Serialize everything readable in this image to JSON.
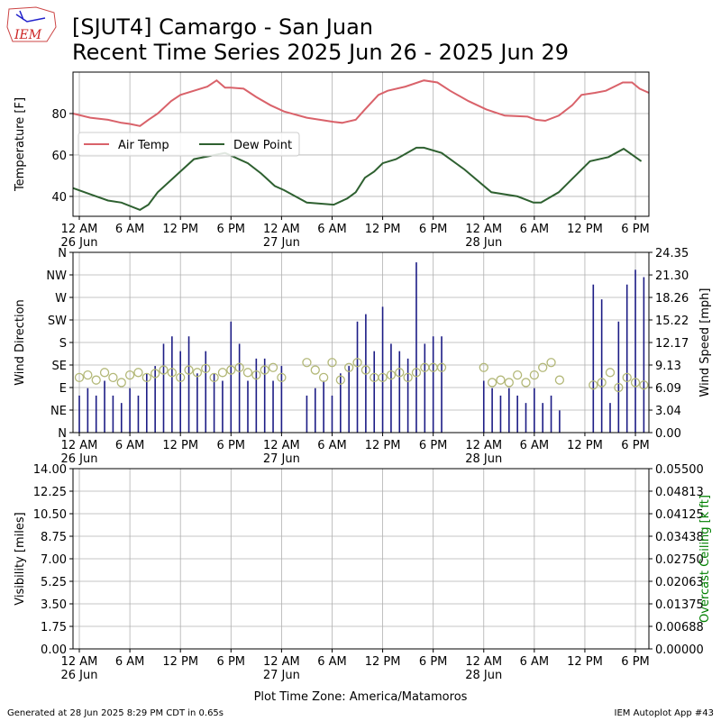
{
  "title": [
    "[SJUT4] Camargo - San Juan",
    "Recent Time Series 2025 Jun 26 - 2025 Jun 29"
  ],
  "logo": "IEM",
  "xlabel": "Plot Time Zone: America/Matamoros",
  "footer_left": "Generated at 28 Jun 2025 8:29 PM CDT in 0.65s",
  "footer_right": "IEM Autoplot App #43",
  "chart_data": [
    {
      "type": "line",
      "ylabel": "Temperature [F]",
      "grid": true,
      "legend": "center left",
      "xlim": [
        -0.75,
        67.6
      ],
      "ylim": [
        30.4,
        100
      ],
      "yticks": [
        40,
        60,
        80
      ],
      "xticks": [
        {
          "value": 0,
          "label": "12 AM\n26 Jun"
        },
        {
          "value": 6,
          "label": "6 AM"
        },
        {
          "value": 12,
          "label": "12 PM"
        },
        {
          "value": 18,
          "label": "6 PM"
        },
        {
          "value": 24,
          "label": "12 AM\n27 Jun"
        },
        {
          "value": 30,
          "label": "6 AM"
        },
        {
          "value": 36,
          "label": "12 PM"
        },
        {
          "value": 42,
          "label": "6 PM"
        },
        {
          "value": 48,
          "label": "12 AM\n28 Jun"
        },
        {
          "value": 54,
          "label": "6 AM"
        },
        {
          "value": 60,
          "label": "12 PM"
        },
        {
          "value": 66,
          "label": "6 PM"
        }
      ],
      "series": [
        {
          "name": "Air Temp",
          "color": "#d9626a",
          "x": [
            -0.75,
            1.3,
            3.4,
            5,
            6,
            7.2,
            8.2,
            9.3,
            10.9,
            12,
            13.6,
            15.2,
            16.3,
            17.3,
            18,
            19.5,
            21,
            22.7,
            24.3,
            27,
            30.2,
            31.2,
            32.8,
            33.9,
            35.5,
            36.6,
            38.7,
            40.9,
            42.5,
            44,
            46.2,
            48.3,
            50.5,
            53.2,
            54.2,
            55.3,
            56.9,
            58.5,
            59.6,
            61.2,
            62.5,
            64.5,
            65.6,
            66.5,
            67.6
          ],
          "values": [
            80,
            78,
            77,
            75.5,
            75,
            74,
            77,
            80,
            86,
            89,
            91,
            93,
            96,
            92.5,
            92.5,
            92,
            88,
            84,
            81,
            78,
            76,
            75.5,
            77,
            82,
            89,
            91,
            93,
            96,
            95,
            91,
            86,
            82,
            79,
            78.5,
            77,
            76.5,
            79,
            84,
            89,
            90,
            91,
            95,
            95,
            92,
            90
          ]
        },
        {
          "name": "Dew Point",
          "color": "#2e6030",
          "x": [
            -0.75,
            1.3,
            3.4,
            5,
            7.2,
            8.2,
            9.3,
            12,
            13.6,
            17.3,
            20,
            21.6,
            23.2,
            24.3,
            27,
            30.2,
            31.8,
            32.8,
            33.9,
            35,
            36,
            37.6,
            40,
            40.9,
            43,
            45.7,
            48.9,
            52,
            53.9,
            54.8,
            56.9,
            60.6,
            62.8,
            64.6,
            66.7
          ],
          "values": [
            44,
            41,
            38,
            37,
            33.5,
            36,
            42,
            52,
            58,
            61,
            56,
            51,
            45,
            43,
            37,
            36,
            39,
            42,
            49,
            52,
            56,
            58,
            63.5,
            63.5,
            61,
            53,
            42,
            40,
            37,
            37,
            42,
            57,
            59,
            63,
            57
          ]
        }
      ]
    },
    {
      "type": "bar",
      "ylabel": "Wind Direction",
      "y2label": "Wind Speed [mph]",
      "grid": true,
      "xlim": [
        -0.75,
        67.6
      ],
      "ylim": [
        0,
        360
      ],
      "y2lim": [
        0,
        24.35
      ],
      "xticks": [
        {
          "value": 0,
          "label": "12 AM\n26 Jun"
        },
        {
          "value": 6,
          "label": "6 AM"
        },
        {
          "value": 12,
          "label": "12 PM"
        },
        {
          "value": 18,
          "label": "6 PM"
        },
        {
          "value": 24,
          "label": "12 AM\n27 Jun"
        },
        {
          "value": 30,
          "label": "6 AM"
        },
        {
          "value": 36,
          "label": "12 PM"
        },
        {
          "value": 42,
          "label": "6 PM"
        },
        {
          "value": 48,
          "label": "12 AM\n28 Jun"
        },
        {
          "value": 54,
          "label": "6 AM"
        },
        {
          "value": 60,
          "label": "12 PM"
        },
        {
          "value": 66,
          "label": "6 PM"
        }
      ],
      "yticks": [
        {
          "value": 0,
          "label": "N"
        },
        {
          "value": 45,
          "label": "NE"
        },
        {
          "value": 90,
          "label": "E"
        },
        {
          "value": 135,
          "label": "SE"
        },
        {
          "value": 180,
          "label": "S"
        },
        {
          "value": 225,
          "label": "SW"
        },
        {
          "value": 270,
          "label": "W"
        },
        {
          "value": 315,
          "label": "NW"
        },
        {
          "value": 360,
          "label": "N"
        }
      ],
      "y2ticks": [
        {
          "value": 0,
          "label": "0.00"
        },
        3.04,
        6.09,
        9.13,
        12.17,
        15.22,
        18.26,
        {
          "value": 21.3,
          "label": "21.30"
        },
        24.35
      ],
      "x": [
        0,
        1,
        2,
        3,
        4,
        5,
        6,
        7,
        8,
        9,
        10,
        11,
        12,
        13,
        14,
        15,
        16,
        17,
        18,
        19,
        20,
        21,
        22,
        23,
        24,
        25,
        26,
        27,
        28,
        29,
        30,
        31,
        32,
        33,
        34,
        35,
        36,
        37,
        38,
        39,
        40,
        41,
        42,
        43,
        44,
        45,
        46,
        47,
        48,
        49,
        50,
        51,
        52,
        53,
        54,
        55,
        56,
        57,
        58,
        59,
        60,
        61,
        62,
        63,
        64,
        65,
        66,
        67
      ],
      "series": [
        {
          "name": "Wind Speed",
          "type": "bar",
          "axis": "y2",
          "color": "#1c1c85",
          "values": [
            5,
            6,
            5,
            7,
            5,
            4,
            6,
            5,
            8,
            9,
            12,
            13,
            11,
            13,
            8,
            11,
            8,
            7,
            15,
            12,
            7,
            10,
            10,
            7,
            9,
            null,
            null,
            5,
            6,
            7,
            5,
            8,
            9,
            15,
            16,
            11,
            17,
            12,
            11,
            10,
            23,
            12,
            13,
            13,
            null,
            null,
            null,
            null,
            7,
            6,
            5,
            6,
            5,
            4,
            6,
            4,
            5,
            3,
            null,
            null,
            null,
            20,
            18,
            4,
            15,
            20,
            22,
            21
          ]
        },
        {
          "name": "Wind Direction",
          "type": "scatter",
          "color": "#b3b878",
          "values": [
            110,
            115,
            105,
            120,
            110,
            100,
            115,
            120,
            110,
            118,
            125,
            120,
            110,
            125,
            120,
            128,
            110,
            120,
            125,
            130,
            120,
            115,
            125,
            130,
            110,
            null,
            null,
            140,
            125,
            110,
            140,
            105,
            130,
            140,
            125,
            110,
            110,
            115,
            120,
            110,
            120,
            130,
            130,
            130,
            null,
            null,
            null,
            null,
            130,
            100,
            105,
            100,
            115,
            100,
            115,
            130,
            140,
            105,
            null,
            null,
            null,
            95,
            100,
            120,
            90,
            110,
            100,
            95
          ]
        }
      ]
    },
    {
      "type": "line",
      "ylabel": "Visibility [miles]",
      "y2label": "Overcast Ceiling [k ft]",
      "grid": true,
      "xlim": [
        -0.75,
        67.6
      ],
      "ylim": [
        0,
        14
      ],
      "y2lim": [
        0,
        0.055
      ],
      "xticks": [
        {
          "value": 0,
          "label": "12 AM\n26 Jun"
        },
        {
          "value": 6,
          "label": "6 AM"
        },
        {
          "value": 12,
          "label": "12 PM"
        },
        {
          "value": 18,
          "label": "6 PM"
        },
        {
          "value": 24,
          "label": "12 AM\n27 Jun"
        },
        {
          "value": 30,
          "label": "6 AM"
        },
        {
          "value": 36,
          "label": "12 PM"
        },
        {
          "value": 42,
          "label": "6 PM"
        },
        {
          "value": 48,
          "label": "12 AM\n28 Jun"
        },
        {
          "value": 54,
          "label": "6 AM"
        },
        {
          "value": 60,
          "label": "12 PM"
        },
        {
          "value": 66,
          "label": "6 PM"
        }
      ],
      "yticks": [
        {
          "value": 0,
          "label": "0.00"
        },
        1.75,
        {
          "value": 3.5,
          "label": "3.50"
        },
        5.25,
        {
          "value": 7,
          "label": "7.00"
        },
        8.75,
        {
          "value": 10.5,
          "label": "10.50"
        },
        12.25,
        {
          "value": 14,
          "label": "14.00"
        }
      ],
      "y2ticks": [
        {
          "value": 0,
          "label": "0.00000"
        },
        0.00688,
        0.01375,
        0.02063,
        {
          "value": 0.0275,
          "label": "0.02750"
        },
        0.03438,
        0.04125,
        0.04813,
        {
          "value": 0.055,
          "label": "0.05500"
        }
      ],
      "y2color": "#008000",
      "series": []
    }
  ]
}
